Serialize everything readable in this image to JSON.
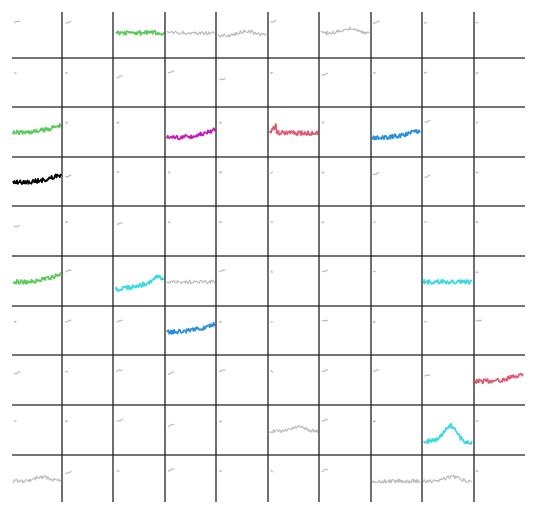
{
  "chart_data": {
    "type": "line",
    "layout": "small-multiples-grid",
    "rows": 10,
    "cols": 10,
    "grid": true,
    "axes_labels": false,
    "colors": {
      "background": "#ffffff",
      "grid": "#222222",
      "inactive": "#bbbbbb",
      "green": "#5ec95a",
      "magenta": "#c21bbd",
      "red": "#de5a6e",
      "blue": "#2a8fdc",
      "black": "#000000",
      "cyan": "#3ad9df"
    },
    "cells": [
      {
        "r": 0,
        "c": 0,
        "color": "inactive",
        "shape": "tick",
        "level": 0.3
      },
      {
        "r": 0,
        "c": 1,
        "color": "inactive",
        "shape": "tick",
        "level": 0.3
      },
      {
        "r": 0,
        "c": 2,
        "color": "green",
        "shape": "flat",
        "level": 0.5
      },
      {
        "r": 0,
        "c": 3,
        "color": "inactive",
        "shape": "flat",
        "level": 0.5
      },
      {
        "r": 0,
        "c": 4,
        "color": "inactive",
        "shape": "bump",
        "level": 0.55
      },
      {
        "r": 0,
        "c": 5,
        "color": "inactive",
        "shape": "tick",
        "level": 0.3
      },
      {
        "r": 0,
        "c": 6,
        "color": "inactive",
        "shape": "bump",
        "level": 0.5
      },
      {
        "r": 0,
        "c": 7,
        "color": "inactive",
        "shape": "tick",
        "level": 0.3
      },
      {
        "r": 0,
        "c": 8,
        "color": "inactive",
        "shape": "dot",
        "level": 0.3
      },
      {
        "r": 0,
        "c": 9,
        "color": "inactive",
        "shape": "dot",
        "level": 0.3
      },
      {
        "r": 1,
        "c": 0,
        "color": "inactive",
        "shape": "dot",
        "level": 0.3
      },
      {
        "r": 1,
        "c": 1,
        "color": "inactive",
        "shape": "dot",
        "level": 0.3
      },
      {
        "r": 1,
        "c": 2,
        "color": "inactive",
        "shape": "tick",
        "level": 0.4
      },
      {
        "r": 1,
        "c": 3,
        "color": "inactive",
        "shape": "tick",
        "level": 0.3
      },
      {
        "r": 1,
        "c": 4,
        "color": "inactive",
        "shape": "tick",
        "level": 0.45
      },
      {
        "r": 1,
        "c": 5,
        "color": "inactive",
        "shape": "dot",
        "level": 0.3
      },
      {
        "r": 1,
        "c": 6,
        "color": "inactive",
        "shape": "tick",
        "level": 0.35
      },
      {
        "r": 1,
        "c": 7,
        "color": "inactive",
        "shape": "dot",
        "level": 0.3
      },
      {
        "r": 1,
        "c": 8,
        "color": "inactive",
        "shape": "dot",
        "level": 0.3
      },
      {
        "r": 1,
        "c": 9,
        "color": "inactive",
        "shape": "dot",
        "level": 0.3
      },
      {
        "r": 2,
        "c": 0,
        "color": "green",
        "shape": "rise",
        "level": 0.5
      },
      {
        "r": 2,
        "c": 1,
        "color": "inactive",
        "shape": "dot",
        "level": 0.3
      },
      {
        "r": 2,
        "c": 2,
        "color": "inactive",
        "shape": "dot",
        "level": 0.3
      },
      {
        "r": 2,
        "c": 3,
        "color": "magenta",
        "shape": "rise",
        "level": 0.6
      },
      {
        "r": 2,
        "c": 4,
        "color": "inactive",
        "shape": "dot",
        "level": 0.3
      },
      {
        "r": 2,
        "c": 5,
        "color": "red",
        "shape": "drop",
        "level": 0.5
      },
      {
        "r": 2,
        "c": 6,
        "color": "inactive",
        "shape": "dot",
        "level": 0.3
      },
      {
        "r": 2,
        "c": 7,
        "color": "blue",
        "shape": "rise",
        "level": 0.6
      },
      {
        "r": 2,
        "c": 8,
        "color": "inactive",
        "shape": "tick",
        "level": 0.3
      },
      {
        "r": 2,
        "c": 9,
        "color": "inactive",
        "shape": "dot",
        "level": 0.3
      },
      {
        "r": 3,
        "c": 0,
        "color": "black",
        "shape": "rise",
        "level": 0.5
      },
      {
        "r": 3,
        "c": 1,
        "color": "inactive",
        "shape": "tick",
        "level": 0.4
      },
      {
        "r": 3,
        "c": 2,
        "color": "inactive",
        "shape": "dot",
        "level": 0.3
      },
      {
        "r": 3,
        "c": 3,
        "color": "inactive",
        "shape": "dot",
        "level": 0.3
      },
      {
        "r": 3,
        "c": 4,
        "color": "inactive",
        "shape": "dot",
        "level": 0.3
      },
      {
        "r": 3,
        "c": 5,
        "color": "inactive",
        "shape": "dot",
        "level": 0.3
      },
      {
        "r": 3,
        "c": 6,
        "color": "inactive",
        "shape": "dot",
        "level": 0.3
      },
      {
        "r": 3,
        "c": 7,
        "color": "inactive",
        "shape": "tick",
        "level": 0.35
      },
      {
        "r": 3,
        "c": 8,
        "color": "inactive",
        "shape": "tick",
        "level": 0.4
      },
      {
        "r": 3,
        "c": 9,
        "color": "inactive",
        "shape": "dot",
        "level": 0.3
      },
      {
        "r": 4,
        "c": 0,
        "color": "inactive",
        "shape": "tick",
        "level": 0.4
      },
      {
        "r": 4,
        "c": 1,
        "color": "inactive",
        "shape": "dot",
        "level": 0.3
      },
      {
        "r": 4,
        "c": 2,
        "color": "inactive",
        "shape": "tick",
        "level": 0.35
      },
      {
        "r": 4,
        "c": 3,
        "color": "inactive",
        "shape": "dot",
        "level": 0.3
      },
      {
        "r": 4,
        "c": 4,
        "color": "inactive",
        "shape": "dot",
        "level": 0.3
      },
      {
        "r": 4,
        "c": 5,
        "color": "inactive",
        "shape": "dot",
        "level": 0.3
      },
      {
        "r": 4,
        "c": 6,
        "color": "inactive",
        "shape": "dot",
        "level": 0.3
      },
      {
        "r": 4,
        "c": 7,
        "color": "inactive",
        "shape": "dot",
        "level": 0.3
      },
      {
        "r": 4,
        "c": 8,
        "color": "inactive",
        "shape": "dot",
        "level": 0.3
      },
      {
        "r": 4,
        "c": 9,
        "color": "inactive",
        "shape": "dot",
        "level": 0.3
      },
      {
        "r": 5,
        "c": 0,
        "color": "green",
        "shape": "rise",
        "level": 0.5
      },
      {
        "r": 5,
        "c": 1,
        "color": "inactive",
        "shape": "tick",
        "level": 0.3
      },
      {
        "r": 5,
        "c": 2,
        "color": "cyan",
        "shape": "spike",
        "level": 0.65
      },
      {
        "r": 5,
        "c": 3,
        "color": "inactive",
        "shape": "flat",
        "level": 0.5
      },
      {
        "r": 5,
        "c": 4,
        "color": "inactive",
        "shape": "tick",
        "level": 0.3
      },
      {
        "r": 5,
        "c": 5,
        "color": "inactive",
        "shape": "dot",
        "level": 0.3
      },
      {
        "r": 5,
        "c": 6,
        "color": "inactive",
        "shape": "tick",
        "level": 0.3
      },
      {
        "r": 5,
        "c": 7,
        "color": "inactive",
        "shape": "dot",
        "level": 0.3
      },
      {
        "r": 5,
        "c": 8,
        "color": "cyan",
        "shape": "flat",
        "level": 0.5
      },
      {
        "r": 5,
        "c": 9,
        "color": "inactive",
        "shape": "dot",
        "level": 0.3
      },
      {
        "r": 6,
        "c": 0,
        "color": "inactive",
        "shape": "dot",
        "level": 0.3
      },
      {
        "r": 6,
        "c": 1,
        "color": "inactive",
        "shape": "tick",
        "level": 0.3
      },
      {
        "r": 6,
        "c": 2,
        "color": "inactive",
        "shape": "tick",
        "level": 0.3
      },
      {
        "r": 6,
        "c": 3,
        "color": "blue",
        "shape": "rise",
        "level": 0.5
      },
      {
        "r": 6,
        "c": 4,
        "color": "inactive",
        "shape": "dot",
        "level": 0.3
      },
      {
        "r": 6,
        "c": 5,
        "color": "inactive",
        "shape": "dot",
        "level": 0.3
      },
      {
        "r": 6,
        "c": 6,
        "color": "inactive",
        "shape": "tick",
        "level": 0.3
      },
      {
        "r": 6,
        "c": 7,
        "color": "inactive",
        "shape": "dot",
        "level": 0.3
      },
      {
        "r": 6,
        "c": 8,
        "color": "inactive",
        "shape": "dot",
        "level": 0.3
      },
      {
        "r": 6,
        "c": 9,
        "color": "inactive",
        "shape": "tick",
        "level": 0.3
      },
      {
        "r": 7,
        "c": 0,
        "color": "inactive",
        "shape": "tick",
        "level": 0.35
      },
      {
        "r": 7,
        "c": 1,
        "color": "inactive",
        "shape": "dot",
        "level": 0.3
      },
      {
        "r": 7,
        "c": 2,
        "color": "inactive",
        "shape": "tick",
        "level": 0.3
      },
      {
        "r": 7,
        "c": 3,
        "color": "inactive",
        "shape": "tick",
        "level": 0.35
      },
      {
        "r": 7,
        "c": 4,
        "color": "inactive",
        "shape": "tick",
        "level": 0.3
      },
      {
        "r": 7,
        "c": 5,
        "color": "inactive",
        "shape": "dot",
        "level": 0.3
      },
      {
        "r": 7,
        "c": 6,
        "color": "inactive",
        "shape": "tick",
        "level": 0.3
      },
      {
        "r": 7,
        "c": 7,
        "color": "inactive",
        "shape": "tick",
        "level": 0.3
      },
      {
        "r": 7,
        "c": 8,
        "color": "inactive",
        "shape": "tick",
        "level": 0.4
      },
      {
        "r": 7,
        "c": 9,
        "color": "red",
        "shape": "rise",
        "level": 0.5
      },
      {
        "r": 8,
        "c": 0,
        "color": "inactive",
        "shape": "dot",
        "level": 0.3
      },
      {
        "r": 8,
        "c": 1,
        "color": "inactive",
        "shape": "dot",
        "level": 0.3
      },
      {
        "r": 8,
        "c": 2,
        "color": "inactive",
        "shape": "tick",
        "level": 0.3
      },
      {
        "r": 8,
        "c": 3,
        "color": "inactive",
        "shape": "tick",
        "level": 0.4
      },
      {
        "r": 8,
        "c": 4,
        "color": "inactive",
        "shape": "dot",
        "level": 0.3
      },
      {
        "r": 8,
        "c": 5,
        "color": "inactive",
        "shape": "bump",
        "level": 0.5
      },
      {
        "r": 8,
        "c": 6,
        "color": "inactive",
        "shape": "tick",
        "level": 0.3
      },
      {
        "r": 8,
        "c": 7,
        "color": "inactive",
        "shape": "dot",
        "level": 0.3
      },
      {
        "r": 8,
        "c": 8,
        "color": "cyan",
        "shape": "peak",
        "level": 0.7
      },
      {
        "r": 8,
        "c": 9,
        "color": "inactive",
        "shape": "dot",
        "level": 0.3
      },
      {
        "r": 9,
        "c": 0,
        "color": "inactive",
        "shape": "bump",
        "level": 0.5
      },
      {
        "r": 9,
        "c": 1,
        "color": "inactive",
        "shape": "tick",
        "level": 0.35
      },
      {
        "r": 9,
        "c": 2,
        "color": "inactive",
        "shape": "dot",
        "level": 0.3
      },
      {
        "r": 9,
        "c": 3,
        "color": "inactive",
        "shape": "tick",
        "level": 0.3
      },
      {
        "r": 9,
        "c": 4,
        "color": "inactive",
        "shape": "dot",
        "level": 0.3
      },
      {
        "r": 9,
        "c": 5,
        "color": "inactive",
        "shape": "dot",
        "level": 0.3
      },
      {
        "r": 9,
        "c": 6,
        "color": "inactive",
        "shape": "tick",
        "level": 0.3
      },
      {
        "r": 9,
        "c": 7,
        "color": "inactive",
        "shape": "flat",
        "level": 0.5
      },
      {
        "r": 9,
        "c": 8,
        "color": "inactive",
        "shape": "bump",
        "level": 0.5
      },
      {
        "r": 9,
        "c": 9,
        "color": "inactive",
        "shape": "dot",
        "level": 0.3
      }
    ]
  }
}
